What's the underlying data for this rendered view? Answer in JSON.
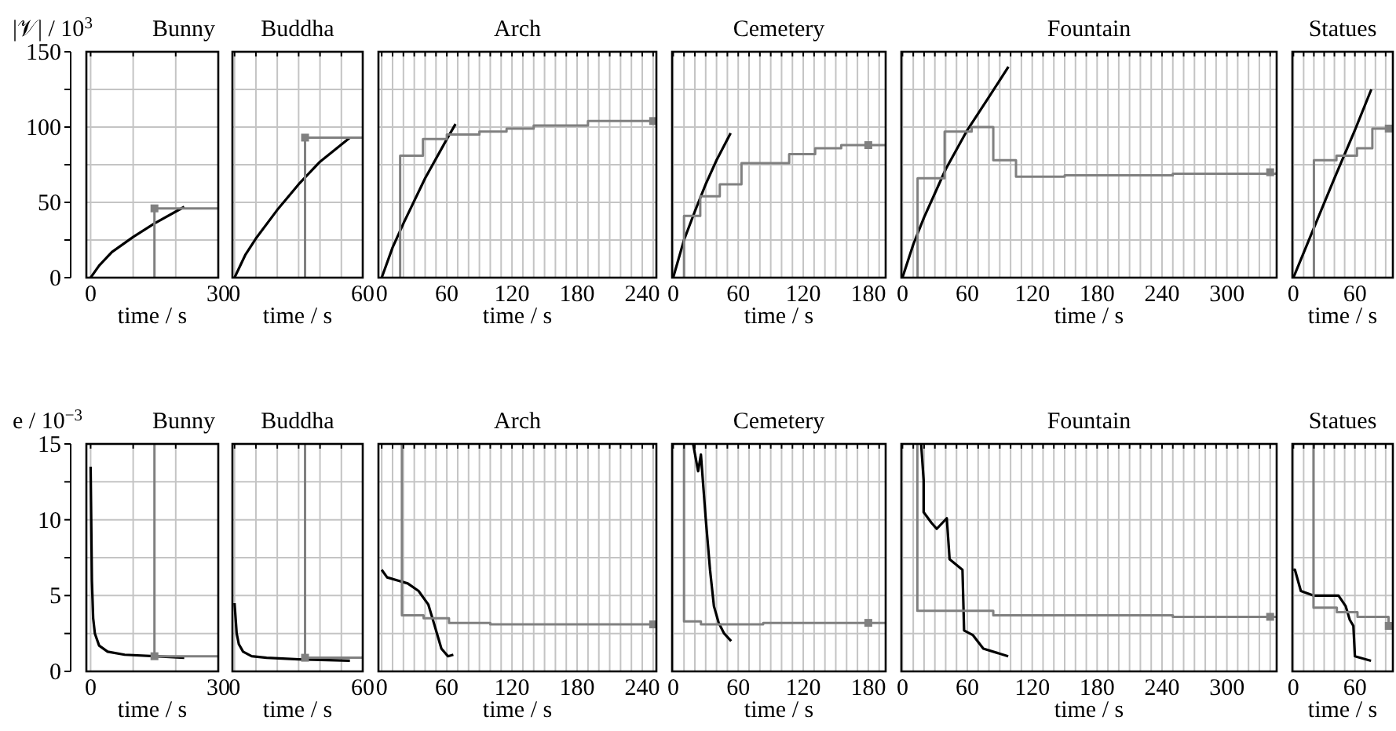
{
  "chart_data": [
    {
      "type": "line",
      "title": "Bunny",
      "ylabel": "|𝒱| / 10$^{3}$",
      "xlabel": "time / s",
      "xlim": [
        -1,
        30
      ],
      "ylim": [
        0,
        150
      ],
      "grid": true,
      "xticks": [
        0,
        {
          "value": 10,
          "label": null
        },
        {
          "value": 20,
          "label": null
        },
        30
      ],
      "yticks": [
        0,
        {
          "value": 25,
          "label": null
        },
        50,
        {
          "value": 75,
          "label": null
        },
        100,
        {
          "value": 125,
          "label": null
        },
        150
      ],
      "series": [
        {
          "type": "line",
          "color": "#000000",
          "x": [
            0,
            2,
            5,
            10,
            15,
            22
          ],
          "values": [
            0,
            8,
            17,
            27,
            36,
            47
          ]
        },
        {
          "type": "step",
          "color": "#808080",
          "x": [
            15,
            15,
            30
          ],
          "values": [
            0,
            46,
            46
          ]
        },
        {
          "type": "scatter",
          "color": "#808080",
          "marker": "square",
          "x": [
            15
          ],
          "values": [
            46
          ]
        }
      ]
    },
    {
      "type": "line",
      "title": "Buddha",
      "xlabel": "time / s",
      "xlim": [
        -1,
        60
      ],
      "ylim": [
        0,
        150
      ],
      "grid": true,
      "tick_labels": "x",
      "xticks": [
        0,
        {
          "value": 10,
          "label": null
        },
        {
          "value": 20,
          "label": null
        },
        {
          "value": 30,
          "label": null
        },
        {
          "value": 40,
          "label": null
        },
        {
          "value": 50,
          "label": null
        },
        60
      ],
      "yticks": [
        0,
        {
          "value": 25,
          "label": null
        },
        50,
        {
          "value": 75,
          "label": null
        },
        100,
        {
          "value": 125,
          "label": null
        },
        150
      ],
      "series": [
        {
          "type": "line",
          "color": "#000000",
          "x": [
            0,
            5,
            10,
            20,
            30,
            40,
            54
          ],
          "values": [
            0,
            15,
            26,
            45,
            62,
            77,
            93
          ]
        },
        {
          "type": "step",
          "color": "#808080",
          "x": [
            33,
            33,
            60
          ],
          "values": [
            0,
            93,
            93
          ]
        },
        {
          "type": "scatter",
          "color": "#808080",
          "marker": "square",
          "x": [
            33
          ],
          "values": [
            93
          ]
        }
      ]
    },
    {
      "type": "line",
      "title": "Arch",
      "xlabel": "time / s",
      "xlim": [
        -3,
        253
      ],
      "ylim": [
        0,
        150
      ],
      "grid": true,
      "tick_labels": "x",
      "xticks": [
        0,
        {
          "value": 10,
          "label": null
        },
        {
          "value": 20,
          "label": null
        },
        {
          "value": 30,
          "label": null
        },
        {
          "value": 40,
          "label": null
        },
        {
          "value": 50,
          "label": null
        },
        60,
        {
          "value": 70,
          "label": null
        },
        {
          "value": 80,
          "label": null
        },
        {
          "value": 90,
          "label": null
        },
        {
          "value": 100,
          "label": null
        },
        {
          "value": 110,
          "label": null
        },
        120,
        {
          "value": 130,
          "label": null
        },
        {
          "value": 140,
          "label": null
        },
        {
          "value": 150,
          "label": null
        },
        {
          "value": 160,
          "label": null
        },
        {
          "value": 170,
          "label": null
        },
        180,
        {
          "value": 190,
          "label": null
        },
        {
          "value": 200,
          "label": null
        },
        {
          "value": 210,
          "label": null
        },
        {
          "value": 220,
          "label": null
        },
        {
          "value": 230,
          "label": null
        },
        240,
        {
          "value": 250,
          "label": null
        }
      ],
      "yticks": [
        0,
        {
          "value": 25,
          "label": null
        },
        50,
        {
          "value": 75,
          "label": null
        },
        100,
        {
          "value": 125,
          "label": null
        },
        150
      ],
      "series": [
        {
          "type": "line",
          "color": "#000000",
          "x": [
            0,
            10,
            20,
            40,
            60,
            68
          ],
          "values": [
            0,
            20,
            36,
            66,
            92,
            102
          ]
        },
        {
          "type": "step",
          "color": "#808080",
          "x": [
            17,
            17,
            38,
            60,
            90,
            115,
            140,
            190,
            250
          ],
          "values": [
            0,
            81,
            92,
            95,
            97,
            99,
            101,
            104,
            104
          ]
        },
        {
          "type": "scatter",
          "color": "#808080",
          "marker": "square",
          "x": [
            250
          ],
          "values": [
            104
          ]
        }
      ]
    },
    {
      "type": "line",
      "title": "Cemetery",
      "xlabel": "time / s",
      "xlim": [
        -1,
        196
      ],
      "ylim": [
        0,
        150
      ],
      "grid": true,
      "tick_labels": "x",
      "xticks": [
        0,
        {
          "value": 10,
          "label": null
        },
        {
          "value": 20,
          "label": null
        },
        {
          "value": 30,
          "label": null
        },
        {
          "value": 40,
          "label": null
        },
        {
          "value": 50,
          "label": null
        },
        60,
        {
          "value": 70,
          "label": null
        },
        {
          "value": 80,
          "label": null
        },
        {
          "value": 90,
          "label": null
        },
        {
          "value": 100,
          "label": null
        },
        {
          "value": 110,
          "label": null
        },
        120,
        {
          "value": 130,
          "label": null
        },
        {
          "value": 140,
          "label": null
        },
        {
          "value": 150,
          "label": null
        },
        {
          "value": 160,
          "label": null
        },
        {
          "value": 170,
          "label": null
        },
        180,
        {
          "value": 190,
          "label": null
        }
      ],
      "yticks": [
        0,
        {
          "value": 25,
          "label": null
        },
        50,
        {
          "value": 75,
          "label": null
        },
        100,
        {
          "value": 125,
          "label": null
        },
        150
      ],
      "series": [
        {
          "type": "line",
          "color": "#000000",
          "x": [
            0,
            10,
            20,
            30,
            40,
            53
          ],
          "values": [
            0,
            25,
            44,
            62,
            78,
            96
          ]
        },
        {
          "type": "step",
          "color": "#808080",
          "x": [
            10,
            10,
            25,
            43,
            63,
            107,
            131,
            155,
            196
          ],
          "values": [
            0,
            41,
            54,
            62,
            76,
            82,
            86,
            88,
            88
          ]
        },
        {
          "type": "scatter",
          "color": "#808080",
          "marker": "square",
          "x": [
            180
          ],
          "values": [
            88
          ]
        }
      ]
    },
    {
      "type": "line",
      "title": "Fountain",
      "xlabel": "time / s",
      "xlim": [
        -1,
        346
      ],
      "ylim": [
        0,
        150
      ],
      "grid": true,
      "tick_labels": "x",
      "xticks": [
        0,
        {
          "value": 10,
          "label": null
        },
        {
          "value": 20,
          "label": null
        },
        {
          "value": 30,
          "label": null
        },
        {
          "value": 40,
          "label": null
        },
        {
          "value": 50,
          "label": null
        },
        60,
        {
          "value": 70,
          "label": null
        },
        {
          "value": 80,
          "label": null
        },
        {
          "value": 90,
          "label": null
        },
        {
          "value": 100,
          "label": null
        },
        {
          "value": 110,
          "label": null
        },
        120,
        {
          "value": 130,
          "label": null
        },
        {
          "value": 140,
          "label": null
        },
        {
          "value": 150,
          "label": null
        },
        {
          "value": 160,
          "label": null
        },
        {
          "value": 170,
          "label": null
        },
        180,
        {
          "value": 190,
          "label": null
        },
        {
          "value": 200,
          "label": null
        },
        {
          "value": 210,
          "label": null
        },
        {
          "value": 220,
          "label": null
        },
        {
          "value": 230,
          "label": null
        },
        240,
        {
          "value": 250,
          "label": null
        },
        {
          "value": 260,
          "label": null
        },
        {
          "value": 270,
          "label": null
        },
        {
          "value": 280,
          "label": null
        },
        {
          "value": 290,
          "label": null
        },
        300,
        {
          "value": 310,
          "label": null
        },
        {
          "value": 320,
          "label": null
        },
        {
          "value": 330,
          "label": null
        },
        {
          "value": 340,
          "label": null
        }
      ],
      "yticks": [
        0,
        {
          "value": 25,
          "label": null
        },
        50,
        {
          "value": 75,
          "label": null
        },
        100,
        {
          "value": 125,
          "label": null
        },
        150
      ],
      "series": [
        {
          "type": "line",
          "color": "#000000",
          "x": [
            0,
            10,
            20,
            40,
            60,
            80,
            98
          ],
          "values": [
            0,
            22,
            40,
            72,
            98,
            120,
            140
          ]
        },
        {
          "type": "step",
          "color": "#808080",
          "x": [
            14,
            14,
            39,
            64,
            84,
            105,
            150,
            200,
            250,
            300,
            346
          ],
          "values": [
            0,
            66,
            97,
            100,
            78,
            67,
            68,
            68,
            69,
            69,
            70
          ]
        },
        {
          "type": "scatter",
          "color": "#808080",
          "marker": "square",
          "x": [
            340
          ],
          "values": [
            70
          ]
        }
      ]
    },
    {
      "type": "line",
      "title": "Statues",
      "xlabel": "time / s",
      "xlim": [
        -1,
        97
      ],
      "ylim": [
        0,
        150
      ],
      "grid": true,
      "tick_labels": "x",
      "xticks": [
        0,
        {
          "value": 10,
          "label": null
        },
        {
          "value": 20,
          "label": null
        },
        {
          "value": 30,
          "label": null
        },
        {
          "value": 40,
          "label": null
        },
        {
          "value": 50,
          "label": null
        },
        60,
        {
          "value": 70,
          "label": null
        },
        {
          "value": 80,
          "label": null
        },
        {
          "value": 90,
          "label": null
        }
      ],
      "yticks": [
        0,
        {
          "value": 25,
          "label": null
        },
        50,
        {
          "value": 75,
          "label": null
        },
        100,
        {
          "value": 125,
          "label": null
        },
        150
      ],
      "series": [
        {
          "type": "line",
          "color": "#000000",
          "x": [
            0,
            20,
            40,
            60,
            76
          ],
          "values": [
            0,
            33,
            66,
            98,
            125
          ]
        },
        {
          "type": "step",
          "color": "#808080",
          "x": [
            20,
            20,
            42,
            62,
            77,
            97
          ],
          "values": [
            0,
            78,
            81,
            86,
            99,
            99
          ]
        },
        {
          "type": "scatter",
          "color": "#808080",
          "marker": "square",
          "x": [
            93
          ],
          "values": [
            99
          ]
        }
      ]
    },
    {
      "type": "line",
      "title": "Bunny",
      "ylabel": "e / 10$^{−3}$",
      "xlabel": "time / s",
      "xlim": [
        -1,
        30
      ],
      "ylim": [
        0,
        15
      ],
      "grid": true,
      "xticks": [
        0,
        {
          "value": 10,
          "label": null
        },
        {
          "value": 20,
          "label": null
        },
        30
      ],
      "yticks": [
        0,
        {
          "value": 2.5,
          "label": null
        },
        5,
        {
          "value": 7.5,
          "label": null
        },
        10,
        {
          "value": 12.5,
          "label": null
        },
        15
      ],
      "series": [
        {
          "type": "line",
          "color": "#000000",
          "x": [
            0,
            0.3,
            0.6,
            1,
            2,
            4,
            8,
            15,
            22
          ],
          "values": [
            13.5,
            6,
            3.5,
            2.5,
            1.7,
            1.3,
            1.1,
            1,
            0.9
          ]
        },
        {
          "type": "step",
          "color": "#808080",
          "x": [
            15,
            15,
            30
          ],
          "values": [
            15,
            1,
            1
          ]
        },
        {
          "type": "scatter",
          "color": "#808080",
          "marker": "square",
          "x": [
            15
          ],
          "values": [
            1
          ]
        }
      ]
    },
    {
      "type": "line",
      "title": "Buddha",
      "xlabel": "time / s",
      "xlim": [
        -1,
        60
      ],
      "ylim": [
        0,
        15
      ],
      "grid": true,
      "tick_labels": "x",
      "xticks": [
        0,
        {
          "value": 10,
          "label": null
        },
        {
          "value": 20,
          "label": null
        },
        {
          "value": 30,
          "label": null
        },
        {
          "value": 40,
          "label": null
        },
        {
          "value": 50,
          "label": null
        },
        60
      ],
      "yticks": [
        0,
        {
          "value": 2.5,
          "label": null
        },
        5,
        {
          "value": 7.5,
          "label": null
        },
        10,
        {
          "value": 12.5,
          "label": null
        },
        15
      ],
      "series": [
        {
          "type": "line",
          "color": "#000000",
          "x": [
            0,
            1,
            2,
            4,
            8,
            15,
            30,
            54
          ],
          "values": [
            4.5,
            2.5,
            1.8,
            1.3,
            1,
            0.9,
            0.8,
            0.7
          ]
        },
        {
          "type": "step",
          "color": "#808080",
          "x": [
            33,
            33,
            60
          ],
          "values": [
            15,
            0.9,
            1
          ]
        },
        {
          "type": "scatter",
          "color": "#808080",
          "marker": "square",
          "x": [
            33
          ],
          "values": [
            0.9
          ]
        }
      ]
    },
    {
      "type": "line",
      "title": "Arch",
      "xlabel": "time / s",
      "xlim": [
        -3,
        253
      ],
      "ylim": [
        0,
        15
      ],
      "grid": true,
      "tick_labels": "x",
      "xticks": [
        0,
        {
          "value": 10,
          "label": null
        },
        {
          "value": 20,
          "label": null
        },
        {
          "value": 30,
          "label": null
        },
        {
          "value": 40,
          "label": null
        },
        {
          "value": 50,
          "label": null
        },
        60,
        {
          "value": 70,
          "label": null
        },
        {
          "value": 80,
          "label": null
        },
        {
          "value": 90,
          "label": null
        },
        {
          "value": 100,
          "label": null
        },
        {
          "value": 110,
          "label": null
        },
        120,
        {
          "value": 130,
          "label": null
        },
        {
          "value": 140,
          "label": null
        },
        {
          "value": 150,
          "label": null
        },
        {
          "value": 160,
          "label": null
        },
        {
          "value": 170,
          "label": null
        },
        180,
        {
          "value": 190,
          "label": null
        },
        {
          "value": 200,
          "label": null
        },
        {
          "value": 210,
          "label": null
        },
        {
          "value": 220,
          "label": null
        },
        {
          "value": 230,
          "label": null
        },
        240,
        {
          "value": 250,
          "label": null
        }
      ],
      "yticks": [
        0,
        {
          "value": 2.5,
          "label": null
        },
        5,
        {
          "value": 7.5,
          "label": null
        },
        10,
        {
          "value": 12.5,
          "label": null
        },
        15
      ],
      "series": [
        {
          "type": "line",
          "color": "#000000",
          "x": [
            0,
            5,
            24,
            34,
            43,
            48,
            55,
            61,
            66
          ],
          "values": [
            6.7,
            6.2,
            5.8,
            5.3,
            4.4,
            3.2,
            1.5,
            1,
            1.1
          ]
        },
        {
          "type": "step",
          "color": "#808080",
          "x": [
            18.6,
            18.6,
            38.6,
            62,
            100,
            250
          ],
          "values": [
            15,
            3.7,
            3.5,
            3.2,
            3.1,
            3.1
          ]
        },
        {
          "type": "scatter",
          "color": "#808080",
          "marker": "square",
          "x": [
            250
          ],
          "values": [
            3.1
          ]
        }
      ]
    },
    {
      "type": "line",
      "title": "Cemetery",
      "xlabel": "time / s",
      "xlim": [
        -1,
        196
      ],
      "ylim": [
        0,
        15
      ],
      "grid": true,
      "tick_labels": "x",
      "xticks": [
        0,
        {
          "value": 10,
          "label": null
        },
        {
          "value": 20,
          "label": null
        },
        {
          "value": 30,
          "label": null
        },
        {
          "value": 40,
          "label": null
        },
        {
          "value": 50,
          "label": null
        },
        60,
        {
          "value": 70,
          "label": null
        },
        {
          "value": 80,
          "label": null
        },
        {
          "value": 90,
          "label": null
        },
        {
          "value": 100,
          "label": null
        },
        {
          "value": 110,
          "label": null
        },
        120,
        {
          "value": 130,
          "label": null
        },
        {
          "value": 140,
          "label": null
        },
        {
          "value": 150,
          "label": null
        },
        {
          "value": 160,
          "label": null
        },
        {
          "value": 170,
          "label": null
        },
        180,
        {
          "value": 190,
          "label": null
        }
      ],
      "yticks": [
        0,
        {
          "value": 2.5,
          "label": null
        },
        5,
        {
          "value": 7.5,
          "label": null
        },
        10,
        {
          "value": 12.5,
          "label": null
        },
        15
      ],
      "series": [
        {
          "type": "line",
          "color": "#000000",
          "x": [
            18.4,
            23,
            25.6,
            30,
            34,
            37.6,
            42,
            47,
            53.5
          ],
          "values": [
            15,
            13.2,
            14.3,
            10.1,
            6.7,
            4.3,
            3.2,
            2.5,
            2
          ]
        },
        {
          "type": "step",
          "color": "#808080",
          "x": [
            10,
            10,
            25.6,
            83,
            196
          ],
          "values": [
            15,
            3.3,
            3.1,
            3.2,
            3.2
          ]
        },
        {
          "type": "scatter",
          "color": "#808080",
          "marker": "square",
          "x": [
            180
          ],
          "values": [
            3.2
          ]
        }
      ]
    },
    {
      "type": "line",
      "title": "Fountain",
      "xlabel": "time / s",
      "xlim": [
        -1,
        346
      ],
      "ylim": [
        0,
        15
      ],
      "grid": true,
      "tick_labels": "x",
      "xticks": [
        0,
        {
          "value": 10,
          "label": null
        },
        {
          "value": 20,
          "label": null
        },
        {
          "value": 30,
          "label": null
        },
        {
          "value": 40,
          "label": null
        },
        {
          "value": 50,
          "label": null
        },
        60,
        {
          "value": 70,
          "label": null
        },
        {
          "value": 80,
          "label": null
        },
        {
          "value": 90,
          "label": null
        },
        {
          "value": 100,
          "label": null
        },
        {
          "value": 110,
          "label": null
        },
        120,
        {
          "value": 130,
          "label": null
        },
        {
          "value": 140,
          "label": null
        },
        {
          "value": 150,
          "label": null
        },
        {
          "value": 160,
          "label": null
        },
        {
          "value": 170,
          "label": null
        },
        180,
        {
          "value": 190,
          "label": null
        },
        {
          "value": 200,
          "label": null
        },
        {
          "value": 210,
          "label": null
        },
        {
          "value": 220,
          "label": null
        },
        {
          "value": 230,
          "label": null
        },
        240,
        {
          "value": 250,
          "label": null
        },
        {
          "value": 260,
          "label": null
        },
        {
          "value": 270,
          "label": null
        },
        {
          "value": 280,
          "label": null
        },
        {
          "value": 290,
          "label": null
        },
        300,
        {
          "value": 310,
          "label": null
        },
        {
          "value": 320,
          "label": null
        },
        {
          "value": 330,
          "label": null
        },
        {
          "value": 340,
          "label": null
        }
      ],
      "yticks": [
        0,
        {
          "value": 2.5,
          "label": null
        },
        5,
        {
          "value": 7.5,
          "label": null
        },
        10,
        {
          "value": 12.5,
          "label": null
        },
        15
      ],
      "series": [
        {
          "type": "line",
          "color": "#000000",
          "x": [
            17.3,
            19.6,
            19.6,
            26.8,
            31.7,
            41,
            43.6,
            55.5,
            57,
            65,
            74.8,
            97.8
          ],
          "values": [
            15,
            12.6,
            10.5,
            9.8,
            9.4,
            10.1,
            7.4,
            6.7,
            2.7,
            2.4,
            1.5,
            1
          ]
        },
        {
          "type": "step",
          "color": "#808080",
          "x": [
            13.8,
            13.8,
            84,
            200,
            250,
            346
          ],
          "values": [
            15,
            4,
            3.7,
            3.7,
            3.6,
            3.6
          ]
        },
        {
          "type": "scatter",
          "color": "#808080",
          "marker": "square",
          "x": [
            340
          ],
          "values": [
            3.6
          ]
        }
      ]
    },
    {
      "type": "line",
      "title": "Statues",
      "xlabel": "time / s",
      "xlim": [
        -1,
        97
      ],
      "ylim": [
        0,
        15
      ],
      "grid": true,
      "tick_labels": "x",
      "xticks": [
        0,
        {
          "value": 10,
          "label": null
        },
        {
          "value": 20,
          "label": null
        },
        {
          "value": 30,
          "label": null
        },
        {
          "value": 40,
          "label": null
        },
        {
          "value": 50,
          "label": null
        },
        60,
        {
          "value": 70,
          "label": null
        },
        {
          "value": 80,
          "label": null
        },
        {
          "value": 90,
          "label": null
        }
      ],
      "yticks": [
        0,
        {
          "value": 2.5,
          "label": null
        },
        5,
        {
          "value": 7.5,
          "label": null
        },
        10,
        {
          "value": 12.5,
          "label": null
        },
        15
      ],
      "series": [
        {
          "type": "line",
          "color": "#000000",
          "x": [
            0,
            1.5,
            7.3,
            19.6,
            44,
            51,
            55,
            58.5,
            60,
            75.7
          ],
          "values": [
            6.7,
            6.7,
            5.3,
            5,
            5,
            4.3,
            3.4,
            3,
            1,
            0.7
          ]
        },
        {
          "type": "step",
          "color": "#808080",
          "x": [
            19.6,
            19.6,
            42.4,
            62.5,
            92.8,
            97
          ],
          "values": [
            15,
            4.2,
            3.9,
            3.6,
            3,
            3
          ]
        },
        {
          "type": "scatter",
          "color": "#808080",
          "marker": "square",
          "x": [
            93
          ],
          "values": [
            3
          ]
        }
      ]
    }
  ]
}
